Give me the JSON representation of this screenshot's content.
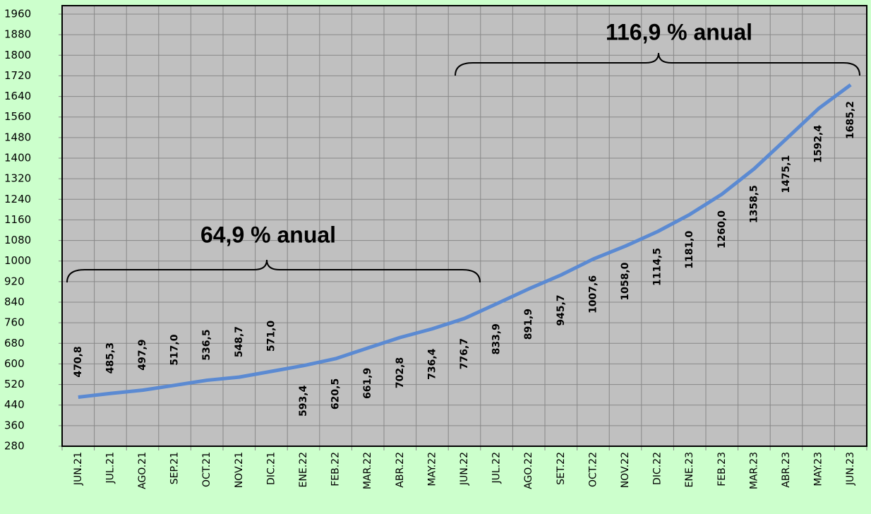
{
  "chart_data": {
    "type": "line",
    "categories": [
      "JUN.21",
      "JUL.21",
      "AGO.21",
      "SEP.21",
      "OCT.21",
      "NOV.21",
      "DIC.21",
      "ENE.22",
      "FEB.22",
      "MAR.22",
      "ABR.22",
      "MAY.22",
      "JUN.22",
      "JUL.22",
      "AGO.22",
      "SET.22",
      "OCT.22",
      "NOV.22",
      "DIC.22",
      "ENE.23",
      "FEB.23",
      "MAR.23",
      "ABR.23",
      "MAY.23",
      "JUN.23"
    ],
    "series": [
      {
        "color": "#5b8ad2",
        "values": [
          470.8,
          485.3,
          497.9,
          517.0,
          536.5,
          548.7,
          571.0,
          593.4,
          620.5,
          661.9,
          702.8,
          736.4,
          776.7,
          833.9,
          891.9,
          945.7,
          1007.6,
          1058.0,
          1114.5,
          1181.0,
          1260.0,
          1358.5,
          1475.1,
          1592.4,
          1685.2
        ],
        "value_labels": [
          "470,8",
          "485,3",
          "497,9",
          "517,0",
          "536,5",
          "548,7",
          "571,0",
          "593,4",
          "620,5",
          "661,9",
          "702,8",
          "736,4",
          "776,7",
          "833,9",
          "891,9",
          "945,7",
          "1007,6",
          "1058,0",
          "1114,5",
          "1181,0",
          "1260,0",
          "1358,5",
          "1475,1",
          "1592,4",
          "1685,2"
        ]
      }
    ],
    "ylim": [
      280,
      1960
    ],
    "yticks": [
      280,
      360,
      440,
      520,
      600,
      680,
      760,
      840,
      920,
      1000,
      1080,
      1160,
      1240,
      1320,
      1400,
      1480,
      1560,
      1640,
      1720,
      1800,
      1880,
      1960
    ],
    "grid": true,
    "annotations": [
      "64,9 %  anual",
      "116,9 % anual"
    ]
  }
}
